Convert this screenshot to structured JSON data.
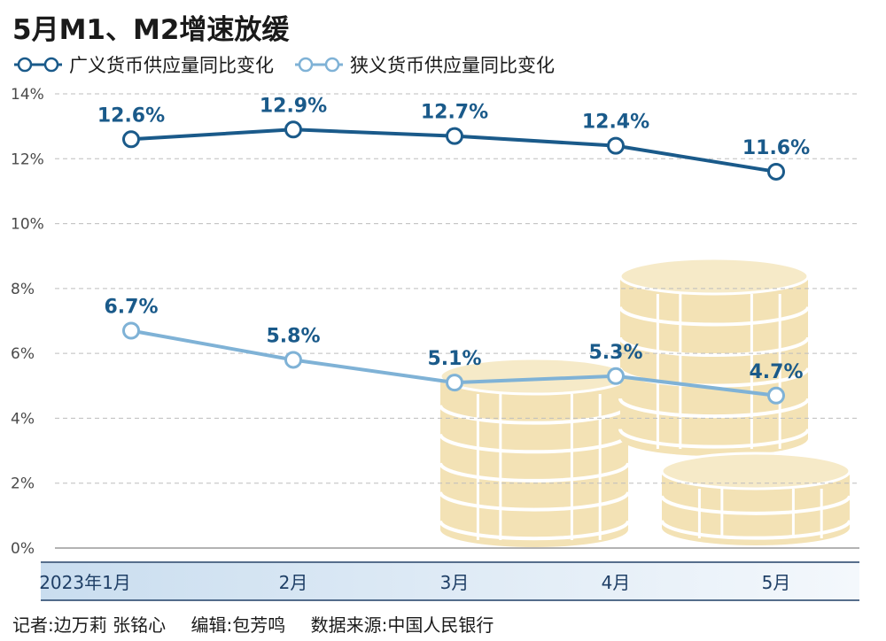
{
  "header": {
    "title": "5月M1、M2增速放缓"
  },
  "legend": [
    {
      "label": "广义货币供应量同比变化"
    },
    {
      "label": "狭义货币供应量同比变化"
    }
  ],
  "colors": {
    "m2": "#1a5a8a",
    "m1": "#7fb2d6",
    "coins": "#f3e2b5",
    "axis_band": "#d7e6f3"
  },
  "chart_data": {
    "type": "line",
    "categories": [
      "2023年1月",
      "2月",
      "3月",
      "4月",
      "5月"
    ],
    "ylim": [
      0,
      14
    ],
    "yticks": [
      0,
      2,
      4,
      6,
      8,
      10,
      12,
      14
    ],
    "ytick_labels": [
      "0%",
      "2%",
      "4%",
      "6%",
      "8%",
      "10%",
      "12%",
      "14%"
    ],
    "grid": true,
    "legend_position": "top-left",
    "series": [
      {
        "name": "广义货币供应量同比变化",
        "values": [
          12.6,
          12.9,
          12.7,
          12.4,
          11.6
        ],
        "labels": [
          "12.6%",
          "12.9%",
          "12.7%",
          "12.4%",
          "11.6%"
        ]
      },
      {
        "name": "狭义货币供应量同比变化",
        "values": [
          6.7,
          5.8,
          5.1,
          5.3,
          4.7
        ],
        "labels": [
          "6.7%",
          "5.8%",
          "5.1%",
          "5.3%",
          "4.7%"
        ]
      }
    ]
  },
  "footer": {
    "reporter": "记者:边万莉 张铭心",
    "editor": "编辑:包芳鸣",
    "source": "数据来源:中国人民银行"
  }
}
